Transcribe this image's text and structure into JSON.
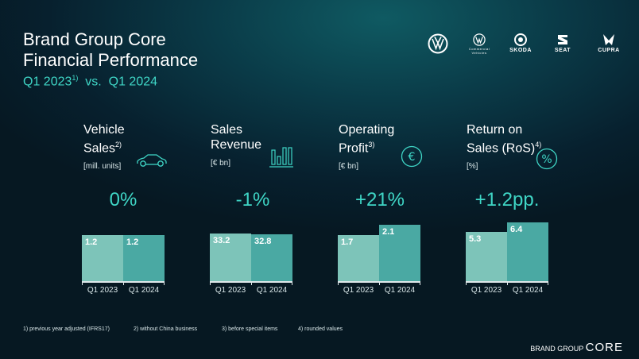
{
  "header": {
    "title": "Brand Group Core",
    "subtitle": "Financial Performance",
    "period_a": "Q1 2023",
    "period_a_note": "1)",
    "vs": "vs.",
    "period_b": "Q1 2024"
  },
  "logos": [
    {
      "name": "vw-logo",
      "text": ""
    },
    {
      "name": "vw-commercial-vehicles-logo",
      "text": "Commercial Vehicles"
    },
    {
      "name": "skoda-logo",
      "text": "SKODA"
    },
    {
      "name": "seat-logo",
      "text": "SEAT"
    },
    {
      "name": "cupra-logo",
      "text": "CUPRA"
    }
  ],
  "kpis": [
    {
      "line1": "Vehicle",
      "line2": "Sales",
      "note": "2)",
      "unit": "[mill. units]",
      "change": "0%",
      "icon": "car-icon"
    },
    {
      "line1": "Sales",
      "line2": "Revenue",
      "note": "",
      "unit": "[€ bn]",
      "change": "-1%",
      "icon": "bar-chart-icon"
    },
    {
      "line1": "Operating",
      "line2": "Profit",
      "note": "3)",
      "unit": "[€ bn]",
      "change": "+21%",
      "icon": "euro-icon"
    },
    {
      "line1": "Return on",
      "line2": "Sales (RoS)",
      "note": "4)",
      "unit": "[%]",
      "change": "+1.2pp.",
      "icon": "percent-icon"
    }
  ],
  "chart_data": [
    {
      "type": "bar",
      "categories": [
        "Q1 2023",
        "Q1 2024"
      ],
      "values": [
        1.2,
        1.2
      ],
      "labels": [
        "1.2",
        "1.2"
      ],
      "ylim": [
        0,
        1.6
      ]
    },
    {
      "type": "bar",
      "categories": [
        "Q1 2023",
        "Q1 2024"
      ],
      "values": [
        33.2,
        32.8
      ],
      "labels": [
        "33.2",
        "32.8"
      ],
      "ylim": [
        0,
        43
      ]
    },
    {
      "type": "bar",
      "categories": [
        "Q1 2023",
        "Q1 2024"
      ],
      "values": [
        1.7,
        2.1
      ],
      "labels": [
        "1.7",
        "2.1"
      ],
      "ylim": [
        0,
        2.3
      ]
    },
    {
      "type": "bar",
      "categories": [
        "Q1 2023",
        "Q1 2024"
      ],
      "values": [
        5.3,
        6.4
      ],
      "labels": [
        "5.3",
        "6.4"
      ],
      "ylim": [
        0,
        6.7
      ]
    }
  ],
  "colors": {
    "accent": "#3fd6c6",
    "bar_2023": "#7dc4b9",
    "bar_2024": "#4aa9a3"
  },
  "footnotes": [
    "1) previous year adjusted (IFRS17)",
    "2) without China business",
    "3) before special items",
    "4) rounded values"
  ],
  "brand": {
    "prefix": "BRAND GROUP",
    "name": "CORE"
  }
}
